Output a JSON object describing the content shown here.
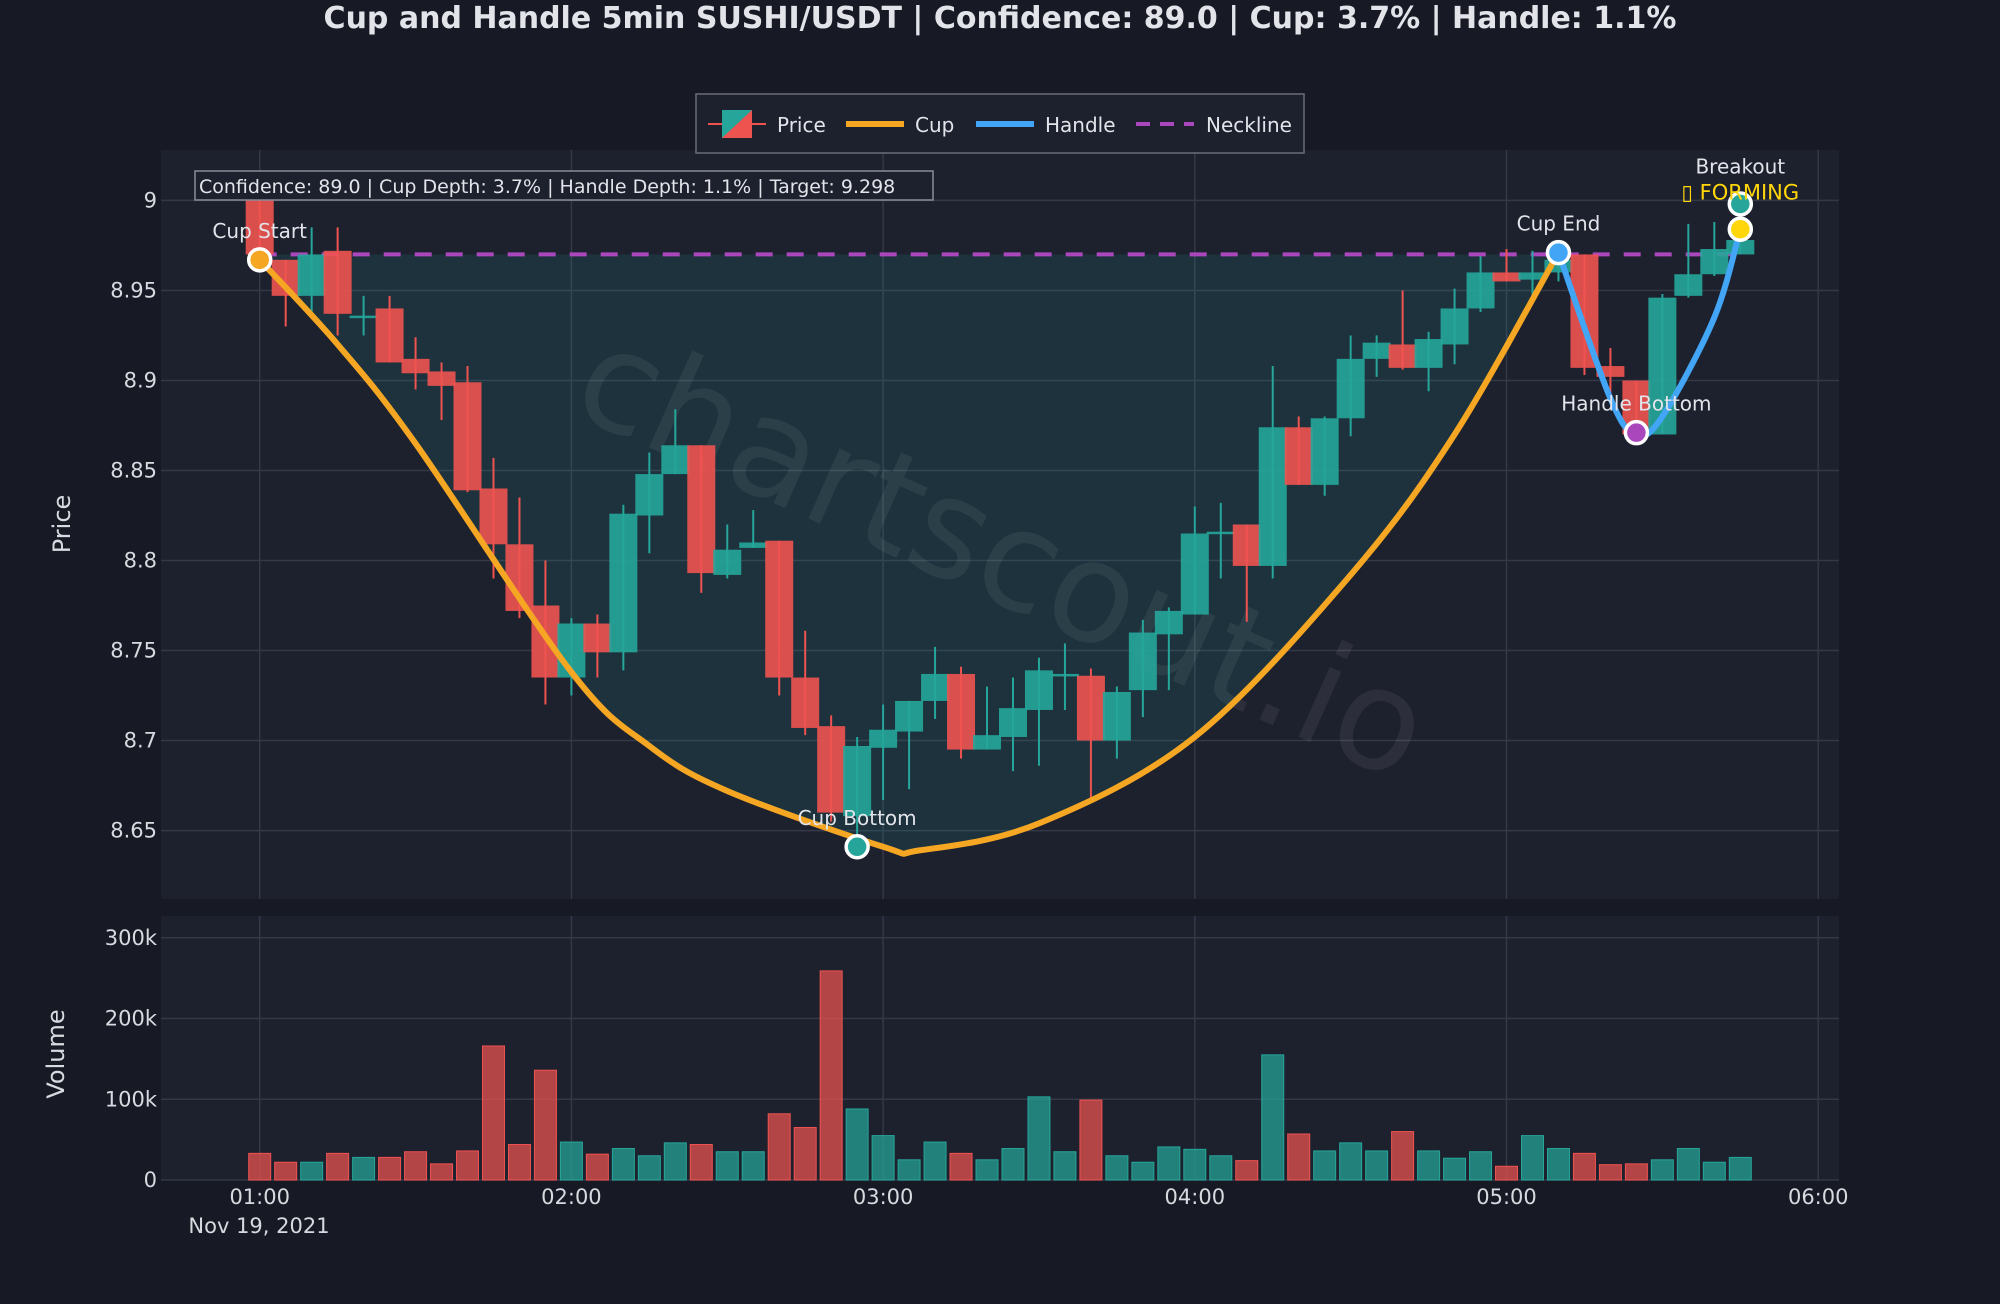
{
  "chart_data": {
    "type": "candlestick",
    "title": "Cup and Handle 5min SUSHI/USDT | Confidence: 89.0 | Cup: 3.7% | Handle: 1.1%",
    "annotation_box": "Confidence: 89.0 | Cup Depth: 3.7% | Handle Depth: 1.1% | Target: 9.298",
    "watermark": "chartscout.io",
    "legend": {
      "placement": "top-center",
      "items": [
        "Price",
        "Cup",
        "Handle",
        "Neckline"
      ]
    },
    "colors": {
      "up": "#26a69a",
      "down": "#ef5350",
      "cup": "#f5a623",
      "handle": "#42a5f5",
      "neckline": "#ab47bc",
      "breakout": "#ffd60a",
      "background": "#171a25",
      "plot_bg": "#1d202d"
    },
    "price_axis": {
      "label": "Price",
      "range": [
        8.612,
        9.028
      ],
      "ticks": [
        "8.65",
        "8.7",
        "8.75",
        "8.8",
        "8.85",
        "8.9",
        "8.95",
        "9"
      ],
      "grid": true
    },
    "volume_axis": {
      "label": "Volume",
      "range": [
        0,
        327000
      ],
      "ticks": [
        {
          "v": 0,
          "label": "0"
        },
        {
          "v": 100000,
          "label": "100k"
        },
        {
          "v": 200000,
          "label": "200k"
        },
        {
          "v": 300000,
          "label": "300k"
        }
      ],
      "grid": true
    },
    "x_axis": {
      "range": [
        "00:41",
        "06:04"
      ],
      "ticks": [
        "01:00",
        "02:00",
        "03:00",
        "04:00",
        "05:00",
        "06:00"
      ],
      "date_label": "Nov 19, 2021",
      "grid": true
    },
    "start_time": "01:00",
    "interval_minutes": 5,
    "ohlcv": [
      [
        9.0,
        9.0,
        8.96,
        8.97,
        33000
      ],
      [
        8.967,
        8.967,
        8.93,
        8.947,
        22000
      ],
      [
        8.947,
        8.985,
        8.937,
        8.97,
        22000
      ],
      [
        8.972,
        8.985,
        8.925,
        8.937,
        33000
      ],
      [
        8.935,
        8.947,
        8.925,
        8.936,
        28000
      ],
      [
        8.94,
        8.947,
        8.91,
        8.91,
        28000
      ],
      [
        8.912,
        8.924,
        8.895,
        8.904,
        35000
      ],
      [
        8.905,
        8.91,
        8.878,
        8.897,
        20000
      ],
      [
        8.899,
        8.908,
        8.838,
        8.839,
        36000
      ],
      [
        8.84,
        8.857,
        8.79,
        8.809,
        166000
      ],
      [
        8.809,
        8.835,
        8.768,
        8.772,
        44000
      ],
      [
        8.775,
        8.8,
        8.72,
        8.735,
        136000
      ],
      [
        8.735,
        8.768,
        8.725,
        8.765,
        47000
      ],
      [
        8.765,
        8.77,
        8.735,
        8.749,
        32000
      ],
      [
        8.749,
        8.831,
        8.739,
        8.826,
        39000
      ],
      [
        8.825,
        8.86,
        8.804,
        8.848,
        30000
      ],
      [
        8.848,
        8.884,
        8.848,
        8.864,
        46000
      ],
      [
        8.864,
        8.864,
        8.782,
        8.793,
        44000
      ],
      [
        8.792,
        8.82,
        8.79,
        8.806,
        35000
      ],
      [
        8.807,
        8.828,
        8.807,
        8.81,
        35000
      ],
      [
        8.811,
        8.811,
        8.725,
        8.735,
        82000
      ],
      [
        8.735,
        8.761,
        8.703,
        8.707,
        65000
      ],
      [
        8.708,
        8.714,
        8.655,
        8.66,
        259000
      ],
      [
        8.658,
        8.702,
        8.643,
        8.697,
        88000
      ],
      [
        8.696,
        8.72,
        8.667,
        8.706,
        55000
      ],
      [
        8.705,
        8.722,
        8.673,
        8.722,
        25000
      ],
      [
        8.722,
        8.752,
        8.712,
        8.737,
        47000
      ],
      [
        8.737,
        8.741,
        8.69,
        8.695,
        33000
      ],
      [
        8.695,
        8.73,
        8.695,
        8.703,
        25000
      ],
      [
        8.702,
        8.735,
        8.683,
        8.718,
        39000
      ],
      [
        8.717,
        8.746,
        8.686,
        8.739,
        103000
      ],
      [
        8.737,
        8.754,
        8.717,
        8.737,
        35000
      ],
      [
        8.736,
        8.74,
        8.668,
        8.7,
        99000
      ],
      [
        8.7,
        8.73,
        8.69,
        8.727,
        30000
      ],
      [
        8.728,
        8.767,
        8.713,
        8.76,
        22000
      ],
      [
        8.759,
        8.774,
        8.728,
        8.772,
        41000
      ],
      [
        8.77,
        8.83,
        8.77,
        8.815,
        38000
      ],
      [
        8.815,
        8.832,
        8.79,
        8.816,
        30000
      ],
      [
        8.82,
        8.82,
        8.766,
        8.797,
        24000
      ],
      [
        8.797,
        8.908,
        8.79,
        8.874,
        155000
      ],
      [
        8.874,
        8.88,
        8.842,
        8.842,
        57000
      ],
      [
        8.842,
        8.88,
        8.836,
        8.879,
        36000
      ],
      [
        8.879,
        8.925,
        8.869,
        8.912,
        46000
      ],
      [
        8.912,
        8.925,
        8.902,
        8.921,
        36000
      ],
      [
        8.92,
        8.95,
        8.906,
        8.907,
        60000
      ],
      [
        8.907,
        8.927,
        8.894,
        8.923,
        36000
      ],
      [
        8.92,
        8.951,
        8.909,
        8.94,
        27000
      ],
      [
        8.94,
        8.969,
        8.938,
        8.96,
        35000
      ],
      [
        8.96,
        8.973,
        8.955,
        8.955,
        17000
      ],
      [
        8.956,
        8.972,
        8.946,
        8.96,
        55000
      ],
      [
        8.96,
        8.97,
        8.955,
        8.967,
        39000
      ],
      [
        8.97,
        8.97,
        8.903,
        8.907,
        33000
      ],
      [
        8.908,
        8.918,
        8.89,
        8.902,
        19000
      ],
      [
        8.9,
        8.9,
        8.868,
        8.87,
        20000
      ],
      [
        8.87,
        8.948,
        8.87,
        8.946,
        25000
      ],
      [
        8.947,
        8.987,
        8.946,
        8.959,
        39000
      ],
      [
        8.959,
        8.988,
        8.958,
        8.973,
        22000
      ],
      [
        8.97,
        8.98,
        8.97,
        8.978,
        28000
      ]
    ],
    "neckline": {
      "price": 8.97,
      "from": "01:00",
      "to": "05:45"
    },
    "cup_curve": [
      [
        "01:00",
        8.967
      ],
      [
        "01:15",
        8.92
      ],
      [
        "01:30",
        8.865
      ],
      [
        "02:00",
        8.738
      ],
      [
        "02:15",
        8.697
      ],
      [
        "02:30",
        8.672
      ],
      [
        "03:00",
        8.641
      ],
      [
        "03:07",
        8.639
      ],
      [
        "03:30",
        8.654
      ],
      [
        "04:00",
        8.702
      ],
      [
        "04:30",
        8.792
      ],
      [
        "04:50",
        8.87
      ],
      [
        "05:10",
        8.971
      ]
    ],
    "handle_curve": [
      [
        "05:10",
        8.971
      ],
      [
        "05:20",
        8.89
      ],
      [
        "05:25",
        8.87
      ],
      [
        "05:30",
        8.88
      ],
      [
        "05:40",
        8.935
      ],
      [
        "05:45",
        8.984
      ]
    ],
    "markers": [
      {
        "label": "Cup Start",
        "time": "01:00",
        "price": 8.967,
        "color": "#f5a623"
      },
      {
        "label": "Cup Bottom",
        "time": "02:55",
        "price": 8.641,
        "color": "#26a69a"
      },
      {
        "label": "Cup End",
        "time": "05:10",
        "price": 8.971,
        "color": "#42a5f5"
      },
      {
        "label": "Handle Bottom",
        "time": "05:25",
        "price": 8.871,
        "color": "#ab47bc"
      },
      {
        "label": "Breakout",
        "time": "05:45",
        "price": 8.998,
        "color": "#26a69a"
      },
      {
        "label": "",
        "time": "05:45",
        "price": 8.984,
        "color": "#ffd60a"
      }
    ],
    "status_label": "▯ FORMING"
  }
}
